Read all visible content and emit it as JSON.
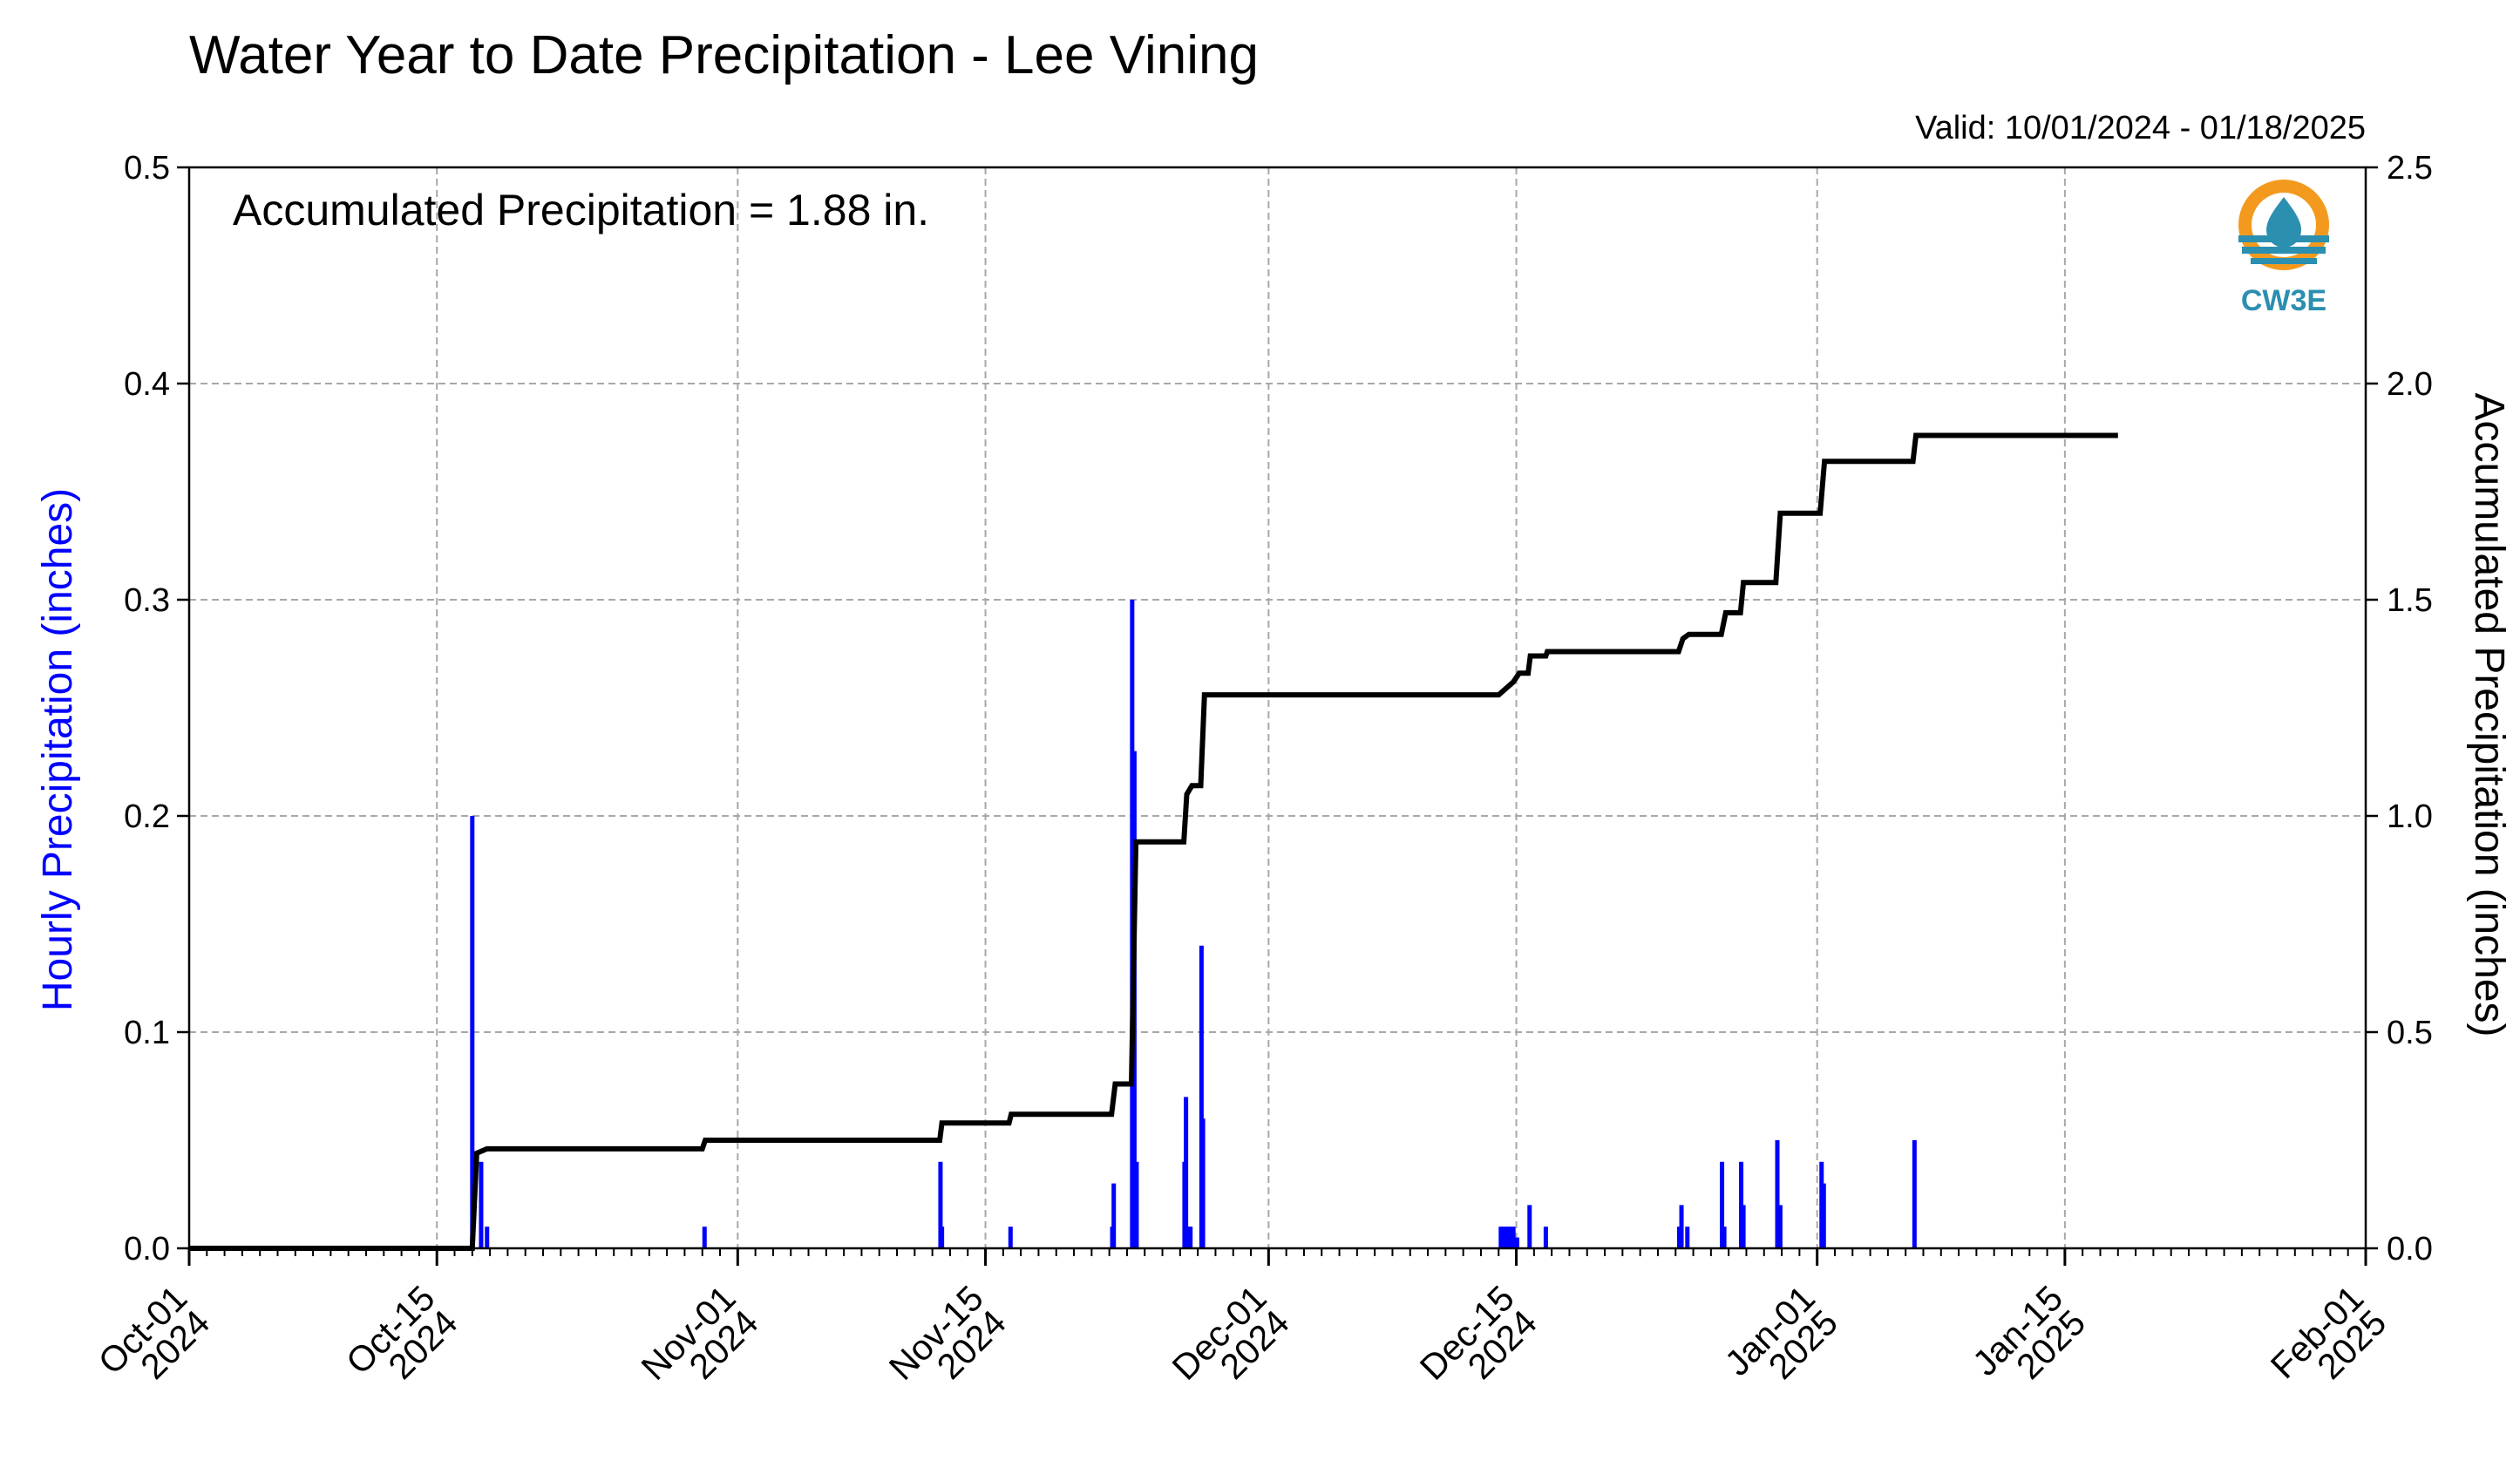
{
  "chart_data": {
    "type": "bar+line",
    "title": "Water Year to Date Precipitation - Lee Vining",
    "valid": "Valid: 10/01/2024 - 01/18/2025",
    "annotation": "Accumulated Precipitation = 1.88 in.",
    "logo_text": "CW3E",
    "ylabel_left": "Hourly Precipitation (inches)",
    "ylabel_right": "Accumulated Precipitation (inches)",
    "ylim_left": [
      0,
      0.5
    ],
    "ylim_right": [
      0,
      2.5
    ],
    "xlim": [
      "2024-10-01",
      "2025-02-01"
    ],
    "grid": true,
    "yticks_left": [
      "0.0",
      "0.1",
      "0.2",
      "0.3",
      "0.4",
      "0.5"
    ],
    "yticks_right": [
      "0.0",
      "0.5",
      "1.0",
      "1.5",
      "2.0",
      "2.5"
    ],
    "xticks": [
      {
        "date": "2024-10-01",
        "line1": "Oct-01",
        "line2": "2024"
      },
      {
        "date": "2024-10-15",
        "line1": "Oct-15",
        "line2": "2024"
      },
      {
        "date": "2024-11-01",
        "line1": "Nov-01",
        "line2": "2024"
      },
      {
        "date": "2024-11-15",
        "line1": "Nov-15",
        "line2": "2024"
      },
      {
        "date": "2024-12-01",
        "line1": "Dec-01",
        "line2": "2024"
      },
      {
        "date": "2024-12-15",
        "line1": "Dec-15",
        "line2": "2024"
      },
      {
        "date": "2025-01-01",
        "line1": "Jan-01",
        "line2": "2025"
      },
      {
        "date": "2025-01-15",
        "line1": "Jan-15",
        "line2": "2025"
      },
      {
        "date": "2025-02-01",
        "line1": "Feb-01",
        "line2": "2025"
      }
    ],
    "series": [
      {
        "name": "Hourly Precipitation",
        "kind": "bar",
        "color": "#0000ff",
        "points": [
          [
            "2024-10-17T00:00",
            0.2
          ],
          [
            "2024-10-17T12:00",
            0.04
          ],
          [
            "2024-10-17T20:00",
            0.01
          ],
          [
            "2024-10-30T03:00",
            0.01
          ],
          [
            "2024-11-12T11:00",
            0.04
          ],
          [
            "2024-11-12T13:00",
            0.01
          ],
          [
            "2024-11-16T10:00",
            0.01
          ],
          [
            "2024-11-22T04:00",
            0.01
          ],
          [
            "2024-11-22T06:00",
            0.03
          ],
          [
            "2024-11-23T07:00",
            0.3
          ],
          [
            "2024-11-23T10:00",
            0.23
          ],
          [
            "2024-11-23T13:00",
            0.04
          ],
          [
            "2024-11-26T06:00",
            0.04
          ],
          [
            "2024-11-26T08:00",
            0.07
          ],
          [
            "2024-11-26T11:00",
            0.01
          ],
          [
            "2024-11-26T14:00",
            0.01
          ],
          [
            "2024-11-27T05:00",
            0.14
          ],
          [
            "2024-11-27T07:00",
            0.06
          ],
          [
            "2024-12-14T03:00",
            0.01
          ],
          [
            "2024-12-14T07:00",
            0.01
          ],
          [
            "2024-12-14T11:00",
            0.01
          ],
          [
            "2024-12-14T16:00",
            0.01
          ],
          [
            "2024-12-14T20:00",
            0.01
          ],
          [
            "2024-12-15T01:00",
            0.005
          ],
          [
            "2024-12-15T18:00",
            0.02
          ],
          [
            "2024-12-16T16:00",
            0.01
          ],
          [
            "2024-12-24T05:00",
            0.01
          ],
          [
            "2024-12-24T08:00",
            0.02
          ],
          [
            "2024-12-24T16:00",
            0.01
          ],
          [
            "2024-12-26T15:00",
            0.04
          ],
          [
            "2024-12-26T18:00",
            0.01
          ],
          [
            "2024-12-27T17:00",
            0.04
          ],
          [
            "2024-12-27T20:00",
            0.02
          ],
          [
            "2024-12-29T18:00",
            0.05
          ],
          [
            "2024-12-29T22:00",
            0.02
          ],
          [
            "2025-01-01T06:00",
            0.04
          ],
          [
            "2025-01-01T09:00",
            0.03
          ],
          [
            "2025-01-06T12:00",
            0.05
          ]
        ]
      },
      {
        "name": "Accumulated Precipitation",
        "kind": "line",
        "color": "#000000",
        "points": [
          [
            "2024-10-01T00:00",
            0.0
          ],
          [
            "2024-10-17T00:00",
            0.0
          ],
          [
            "2024-10-17T06:00",
            0.22
          ],
          [
            "2024-10-17T20:00",
            0.23
          ],
          [
            "2024-10-30T00:00",
            0.23
          ],
          [
            "2024-10-30T04:00",
            0.25
          ],
          [
            "2024-11-12T10:00",
            0.25
          ],
          [
            "2024-11-12T13:00",
            0.29
          ],
          [
            "2024-11-16T08:00",
            0.29
          ],
          [
            "2024-11-16T11:00",
            0.31
          ],
          [
            "2024-11-22T03:00",
            0.31
          ],
          [
            "2024-11-22T08:00",
            0.38
          ],
          [
            "2024-11-23T06:00",
            0.38
          ],
          [
            "2024-11-23T12:00",
            0.94
          ],
          [
            "2024-11-26T05:00",
            0.94
          ],
          [
            "2024-11-26T09:00",
            1.05
          ],
          [
            "2024-11-26T16:00",
            1.07
          ],
          [
            "2024-11-27T04:00",
            1.07
          ],
          [
            "2024-11-27T09:00",
            1.28
          ],
          [
            "2024-12-14T00:00",
            1.28
          ],
          [
            "2024-12-14T20:00",
            1.31
          ],
          [
            "2024-12-15T04:00",
            1.33
          ],
          [
            "2024-12-15T16:00",
            1.33
          ],
          [
            "2024-12-15T19:00",
            1.37
          ],
          [
            "2024-12-16T16:00",
            1.37
          ],
          [
            "2024-12-16T18:00",
            1.38
          ],
          [
            "2024-12-24T04:00",
            1.38
          ],
          [
            "2024-12-24T10:00",
            1.41
          ],
          [
            "2024-12-24T18:00",
            1.42
          ],
          [
            "2024-12-26T14:00",
            1.42
          ],
          [
            "2024-12-26T20:00",
            1.47
          ],
          [
            "2024-12-27T16:00",
            1.47
          ],
          [
            "2024-12-27T20:00",
            1.54
          ],
          [
            "2024-12-29T16:00",
            1.54
          ],
          [
            "2024-12-29T22:00",
            1.7
          ],
          [
            "2025-01-01T04:00",
            1.7
          ],
          [
            "2025-01-01T10:00",
            1.82
          ],
          [
            "2025-01-06T10:00",
            1.82
          ],
          [
            "2025-01-06T14:00",
            1.88
          ],
          [
            "2025-01-18T00:00",
            1.88
          ]
        ]
      }
    ]
  }
}
